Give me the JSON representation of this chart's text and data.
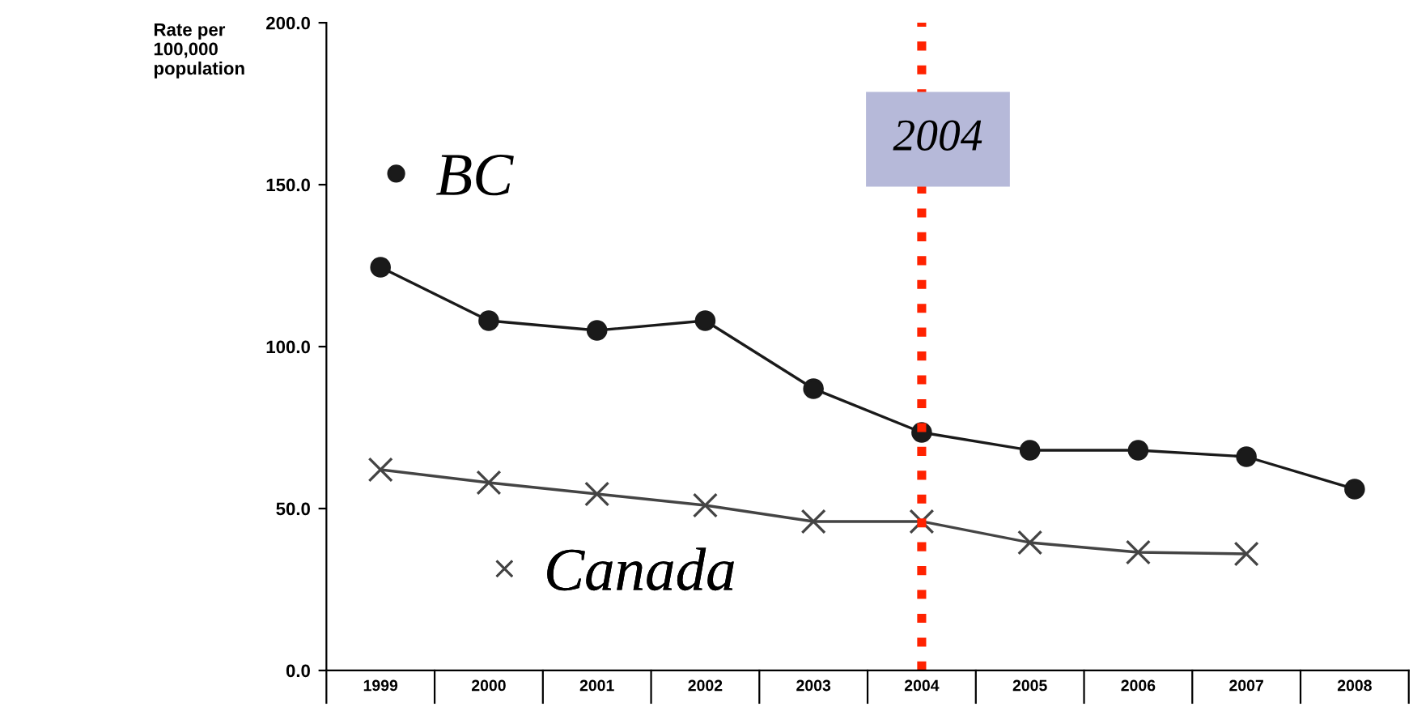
{
  "chart_data": {
    "type": "line",
    "ylabel": "Rate per\n100,000\npopulation",
    "categories": [
      "1999",
      "2000",
      "2001",
      "2002",
      "2003",
      "2004",
      "2005",
      "2006",
      "2007",
      "2008"
    ],
    "series": [
      {
        "name": "BC",
        "color": "#1a1a1a",
        "marker": "circle",
        "values": [
          124.5,
          108,
          105,
          108,
          87,
          73.5,
          68,
          68,
          66,
          56
        ]
      },
      {
        "name": "Canada",
        "color": "#444444",
        "marker": "cross",
        "values": [
          62,
          58,
          54.5,
          51,
          46,
          46,
          39.5,
          36.5,
          36,
          null
        ]
      }
    ],
    "ylim": [
      0,
      200
    ],
    "yticks": [
      {
        "value": 0,
        "label": "0.0"
      },
      {
        "value": 50,
        "label": "50.0"
      },
      {
        "value": 100,
        "label": "100.0"
      },
      {
        "value": 150,
        "label": "150.0"
      },
      {
        "value": 200,
        "label": "200.0"
      }
    ],
    "ref_lines": [
      {
        "axis": "x",
        "value": "2004",
        "label": "2004",
        "color": "#ff2200",
        "line_style": "dotted"
      }
    ],
    "grid": false,
    "legend": "left",
    "line_style": "solid"
  }
}
